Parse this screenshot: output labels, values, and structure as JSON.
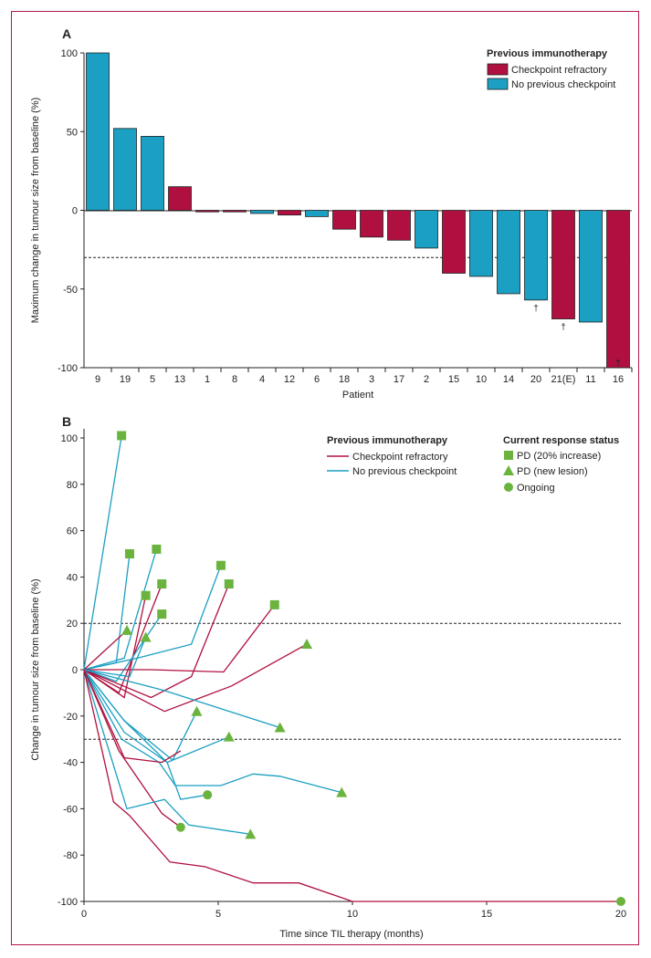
{
  "chart_data": [
    {
      "panel": "A",
      "type": "bar",
      "ylabel": "Maximum change in tumour size from baseline (%)",
      "xlabel": "Patient",
      "ylim": [
        -100,
        100
      ],
      "yticks": [
        100,
        50,
        0,
        -50,
        -100
      ],
      "threshold": -30,
      "legend": {
        "title": "Previous immunotherapy",
        "placement": "top-right",
        "entries": [
          {
            "key": "refractory",
            "label": "Checkpoint refractory",
            "color": "#b0103f"
          },
          {
            "key": "none",
            "label": "No previous checkpoint",
            "color": "#1b9fc2"
          }
        ]
      },
      "categories": [
        "9",
        "19",
        "5",
        "13",
        "1",
        "8",
        "4",
        "12",
        "6",
        "18",
        "3",
        "17",
        "2",
        "15",
        "10",
        "14",
        "20",
        "21(E)",
        "11",
        "16"
      ],
      "values": [
        100,
        52,
        47,
        15,
        -1,
        -1,
        -2,
        -3,
        -4,
        -12,
        -17,
        -19,
        -24,
        -40,
        -42,
        -53,
        -57,
        -69,
        -71,
        -100
      ],
      "groups": [
        "none",
        "none",
        "none",
        "refractory",
        "refractory",
        "refractory",
        "none",
        "refractory",
        "none",
        "refractory",
        "refractory",
        "refractory",
        "none",
        "refractory",
        "none",
        "none",
        "none",
        "refractory",
        "none",
        "refractory"
      ],
      "daggers": [
        "",
        "",
        "",
        "",
        "",
        "",
        "",
        "",
        "",
        "",
        "",
        "",
        "",
        "",
        "",
        "",
        "†",
        "†",
        "",
        "†"
      ]
    },
    {
      "panel": "B",
      "type": "line",
      "ylabel": "Change in tumour size from baseline (%)",
      "xlabel": "Time since TIL therapy (months)",
      "xlim": [
        0,
        20
      ],
      "ylim": [
        -100,
        100
      ],
      "xticks": [
        0,
        5,
        10,
        15,
        20
      ],
      "yticks": [
        100,
        80,
        60,
        40,
        20,
        0,
        -20,
        -40,
        -60,
        -80,
        -100
      ],
      "thresholds": [
        20,
        -30
      ],
      "legend_therapy": {
        "title": "Previous immunotherapy",
        "entries": [
          {
            "key": "refractory",
            "label": "Checkpoint refractory",
            "color": "#b0103f"
          },
          {
            "key": "none",
            "label": "No previous checkpoint",
            "color": "#1b9fc2"
          }
        ]
      },
      "legend_status": {
        "title": "Current response status",
        "marker_color": "#6ab43e",
        "entries": [
          {
            "key": "square",
            "label": "PD (20% increase)"
          },
          {
            "key": "triangle",
            "label": "PD (new lesion)"
          },
          {
            "key": "circle",
            "label": "Ongoing"
          }
        ]
      },
      "series": [
        {
          "group": "none",
          "x": [
            0,
            1.4
          ],
          "y": [
            0,
            101
          ],
          "end": "square"
        },
        {
          "group": "none",
          "x": [
            0,
            1.2,
            1.7
          ],
          "y": [
            0,
            3,
            50
          ],
          "end": "square"
        },
        {
          "group": "none",
          "x": [
            0,
            1.5,
            2.7
          ],
          "y": [
            0,
            5,
            52
          ],
          "end": "square"
        },
        {
          "group": "refractory",
          "x": [
            0,
            1.5,
            2.3
          ],
          "y": [
            0,
            -12,
            32
          ],
          "end": "square"
        },
        {
          "group": "refractory",
          "x": [
            0,
            1.3,
            2.9
          ],
          "y": [
            0,
            -10,
            37
          ],
          "end": "square"
        },
        {
          "group": "none",
          "x": [
            0,
            1.2,
            2.9
          ],
          "y": [
            0,
            -5,
            24
          ],
          "end": "square"
        },
        {
          "group": "none",
          "x": [
            0,
            2,
            4,
            5.1
          ],
          "y": [
            0,
            5,
            11,
            45
          ],
          "end": "square"
        },
        {
          "group": "refractory",
          "x": [
            0,
            2.5,
            4,
            5.4
          ],
          "y": [
            0,
            -12,
            -3,
            37
          ],
          "end": "square"
        },
        {
          "group": "refractory",
          "x": [
            0,
            2.5,
            5.2,
            7.1
          ],
          "y": [
            0,
            0,
            -1,
            28
          ],
          "end": "square"
        },
        {
          "group": "refractory",
          "x": [
            0,
            1.6
          ],
          "y": [
            0,
            17
          ],
          "end": "triangle"
        },
        {
          "group": "none",
          "x": [
            0,
            1.7,
            2.3
          ],
          "y": [
            0,
            -3,
            14
          ],
          "end": "triangle"
        },
        {
          "group": "refractory",
          "x": [
            0,
            3,
            5.5,
            8.3
          ],
          "y": [
            0,
            -18,
            -7,
            11
          ],
          "end": "triangle"
        },
        {
          "group": "none",
          "x": [
            0,
            1.5,
            3.3,
            4.2
          ],
          "y": [
            0,
            -22,
            -39,
            -18
          ],
          "end": "triangle"
        },
        {
          "group": "none",
          "x": [
            0,
            3,
            7.3
          ],
          "y": [
            0,
            -9,
            -25
          ],
          "end": "triangle"
        },
        {
          "group": "none",
          "x": [
            0,
            1.5,
            3.1,
            5.4
          ],
          "y": [
            0,
            -27,
            -40,
            -29
          ],
          "end": "triangle"
        },
        {
          "group": "none",
          "x": [
            0,
            1.4,
            2.8,
            3.4,
            5.1,
            6.3,
            7.3,
            9.6
          ],
          "y": [
            0,
            -30,
            -40,
            -50,
            -50,
            -45,
            -46,
            -53
          ],
          "end": "triangle"
        },
        {
          "group": "none",
          "x": [
            0,
            1.5,
            3.1,
            3.6,
            4.6
          ],
          "y": [
            0,
            -22,
            -40,
            -56,
            -54
          ],
          "end": "circle"
        },
        {
          "group": "refractory",
          "x": [
            0,
            1.3,
            2.9,
            3.6
          ],
          "y": [
            0,
            -35,
            -62,
            -68
          ],
          "end": "circle"
        },
        {
          "group": "none",
          "x": [
            0,
            1.6,
            3.0,
            3.9,
            6.2
          ],
          "y": [
            0,
            -60,
            -56,
            -67,
            -71
          ],
          "end": "triangle"
        },
        {
          "group": "refractory",
          "x": [
            0,
            1.1,
            1.7,
            3.2,
            4.5,
            6.3,
            8.0,
            10,
            20
          ],
          "y": [
            0,
            -57,
            -63,
            -83,
            -85,
            -92,
            -92,
            -100,
            -100
          ],
          "end": "circle"
        },
        {
          "group": "refractory",
          "x": [
            0,
            1.5,
            2.9,
            3.6
          ],
          "y": [
            0,
            -38,
            -40,
            -35
          ],
          "end": "none"
        }
      ]
    }
  ],
  "panel_a": {
    "title": "A"
  },
  "panel_b": {
    "title": "B"
  }
}
